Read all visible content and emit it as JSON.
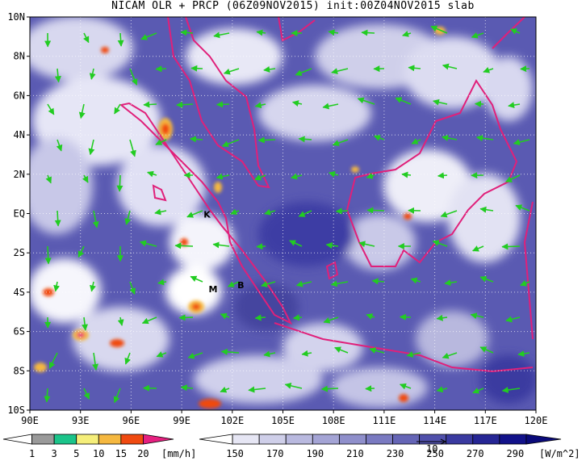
{
  "title": "NICAM OLR + PRCP (06Z09NOV2015) init:00Z04NOV2015 slab",
  "map": {
    "lon_range": [
      90,
      120
    ],
    "lat_range": [
      -10,
      10
    ],
    "lat_ticks": [
      "10N",
      "8N",
      "6N",
      "4N",
      "2N",
      "EQ",
      "2S",
      "4S",
      "6S",
      "8S",
      "10S"
    ],
    "lon_ticks": [
      "90E",
      "93E",
      "96E",
      "99E",
      "102E",
      "105E",
      "108E",
      "111E",
      "114E",
      "117E",
      "120E"
    ],
    "station_labels": [
      {
        "text": "K",
        "lon": 100.3,
        "lat": -0.2
      },
      {
        "text": "M",
        "lon": 100.6,
        "lat": -4.0
      },
      {
        "text": "B",
        "lon": 102.3,
        "lat": -3.8
      }
    ],
    "wind_color": "#22cc22",
    "coast_color": "#e0207a",
    "grid_style": "dotted"
  },
  "precip_colorbar": {
    "labels": [
      "1",
      "3",
      "5",
      "10",
      "15",
      "20"
    ],
    "unit": "[mm/h]",
    "colors": [
      "#ffffff",
      "#9a9a9a",
      "#1bc48a",
      "#f5ee7a",
      "#f5b840",
      "#f04a10",
      "#e62080"
    ]
  },
  "olr_colorbar": {
    "labels": [
      "150",
      "170",
      "190",
      "210",
      "230",
      "250",
      "270",
      "290"
    ],
    "unit": "[W/m^2]",
    "vector_ref_label": "10",
    "colors": [
      "#ffffff",
      "#e6e6f4",
      "#cfcfe9",
      "#b9b9df",
      "#a4a4d5",
      "#8f8fcb",
      "#7a7ac1",
      "#6565b6",
      "#5050ab",
      "#3a3aa0",
      "#262695",
      "#12128a",
      "#0a0a7a"
    ]
  }
}
